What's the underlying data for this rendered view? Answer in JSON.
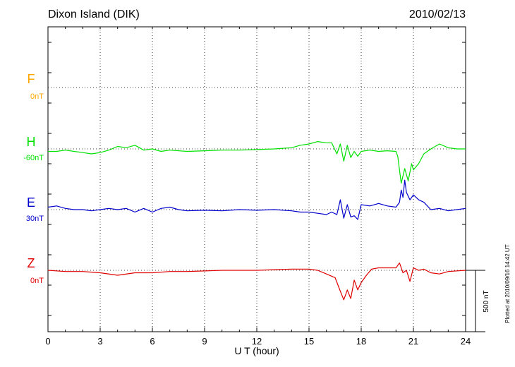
{
  "station_title": "Dixon Island (DIK)",
  "date": "2010/02/13",
  "plotted_note": "Plotted at 2010/09/16 14:42 UT",
  "scale_label": "500 nT",
  "chart_data": {
    "type": "line",
    "title": "Dixon Island (DIK)",
    "xlabel": "U T (hour)",
    "ylabel": "",
    "xlim": [
      0,
      24
    ],
    "xticks": [
      0,
      3,
      6,
      9,
      12,
      15,
      18,
      21,
      24
    ],
    "grid": true,
    "legend": "left",
    "y_units": "nT",
    "series": [
      {
        "name": "F",
        "baseline": "0nT",
        "color": "#FFA500",
        "x": [],
        "y": []
      },
      {
        "name": "H",
        "baseline": "-60nT",
        "color": "#00E000",
        "x": [
          0,
          0.5,
          1,
          1.5,
          2,
          2.5,
          3,
          3.5,
          4,
          4.5,
          5,
          5.5,
          6,
          6.5,
          7,
          8,
          9,
          10,
          11,
          12,
          13,
          14,
          14.5,
          15,
          15.5,
          16,
          16.3,
          16.6,
          16.8,
          17,
          17.2,
          17.4,
          17.6,
          17.8,
          18,
          18.5,
          19,
          19.5,
          20,
          20.1,
          20.3,
          20.5,
          20.7,
          20.9,
          21,
          21.3,
          21.6,
          22,
          22.5,
          23,
          23.5,
          24
        ],
        "y": [
          -20,
          -20,
          -10,
          -20,
          -30,
          -40,
          -30,
          -10,
          20,
          10,
          30,
          -10,
          0,
          -20,
          -10,
          -20,
          -15,
          -10,
          -10,
          -5,
          0,
          10,
          30,
          40,
          60,
          50,
          50,
          -40,
          40,
          -100,
          30,
          -70,
          -20,
          -60,
          -20,
          -10,
          -20,
          -15,
          -20,
          -60,
          -280,
          -160,
          -260,
          -120,
          -170,
          -120,
          -40,
          0,
          40,
          10,
          0,
          0
        ]
      },
      {
        "name": "E",
        "baseline": "30nT",
        "color": "#0000CC",
        "x": [
          0,
          0.5,
          1,
          1.5,
          2,
          2.5,
          3,
          3.5,
          4,
          4.5,
          5,
          5.5,
          6,
          6.5,
          7,
          7.5,
          8,
          9,
          10,
          11,
          12,
          13,
          14,
          14.5,
          15,
          15.5,
          16,
          16.3,
          16.6,
          16.8,
          17,
          17.2,
          17.4,
          17.6,
          17.8,
          18,
          18.5,
          19,
          19.5,
          20,
          20.2,
          20.3,
          20.4,
          20.5,
          20.6,
          20.8,
          21,
          21.3,
          21.6,
          22,
          22.5,
          23,
          23.5,
          24
        ],
        "y": [
          20,
          30,
          10,
          0,
          0,
          -10,
          0,
          10,
          0,
          10,
          -20,
          10,
          -20,
          10,
          20,
          0,
          -10,
          -5,
          -10,
          0,
          -5,
          0,
          -10,
          -20,
          -20,
          -30,
          -40,
          -20,
          -40,
          80,
          -70,
          40,
          -60,
          -50,
          -80,
          40,
          30,
          50,
          30,
          20,
          60,
          160,
          100,
          240,
          140,
          80,
          120,
          80,
          60,
          0,
          10,
          -10,
          0,
          10
        ]
      },
      {
        "name": "Z",
        "baseline": "0nT",
        "color": "#E00000",
        "x": [
          0,
          1,
          2,
          3,
          4,
          5,
          6,
          7,
          8,
          9,
          10,
          11,
          12,
          13,
          14,
          15,
          15.5,
          16,
          16.5,
          16.8,
          17,
          17.2,
          17.4,
          17.6,
          17.8,
          18,
          18.3,
          18.6,
          19,
          19.5,
          20,
          20.2,
          20.4,
          20.6,
          20.8,
          21,
          21.3,
          21.6,
          22,
          22.5,
          23,
          24
        ],
        "y": [
          0,
          -10,
          -10,
          -20,
          -40,
          -20,
          -20,
          -10,
          -10,
          -5,
          0,
          0,
          0,
          5,
          10,
          10,
          0,
          -30,
          -60,
          -170,
          -240,
          -160,
          -230,
          -80,
          -160,
          -100,
          -40,
          10,
          20,
          20,
          20,
          60,
          -20,
          0,
          -90,
          20,
          0,
          10,
          -20,
          -30,
          -10,
          0
        ]
      }
    ]
  }
}
